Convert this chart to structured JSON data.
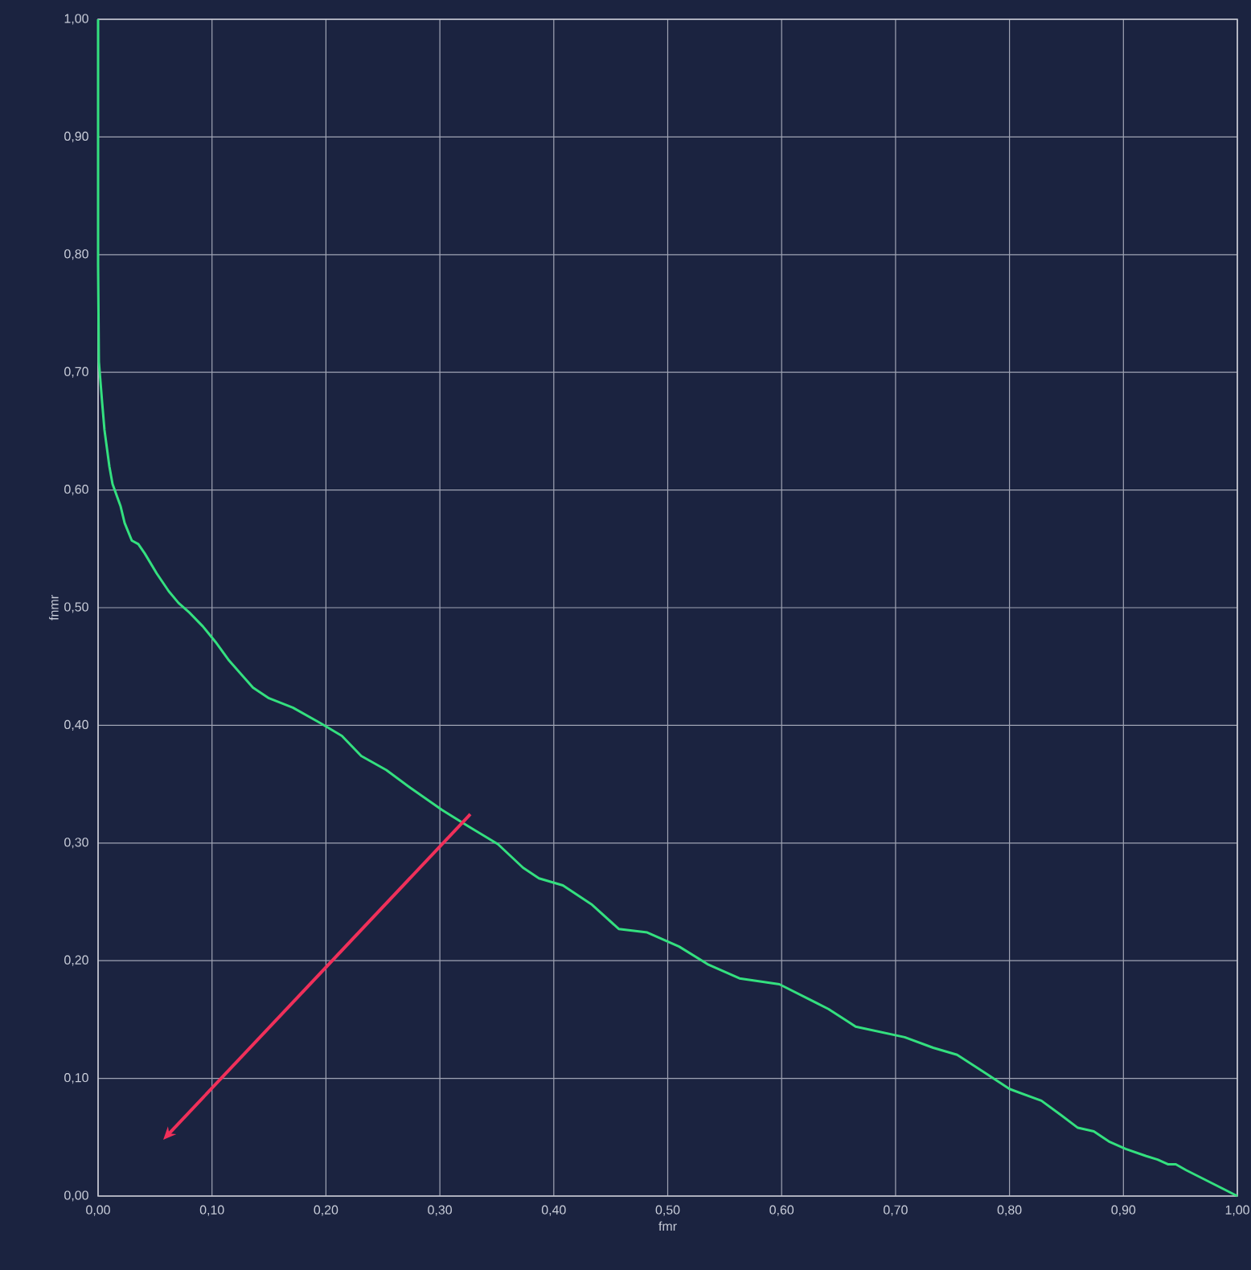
{
  "chart_data": {
    "type": "line",
    "xlabel": "fmr",
    "ylabel": "fnmr",
    "x": [
      0,
      0,
      0.0007,
      0.0035,
      0.0056,
      0.0099,
      0.0127,
      0.0198,
      0.0233,
      0.0296,
      0.0353,
      0.041,
      0.0515,
      0.062,
      0.0706,
      0.08,
      0.092,
      0.103,
      0.115,
      0.126,
      0.136,
      0.15,
      0.171,
      0.195,
      0.214,
      0.231,
      0.253,
      0.274,
      0.302,
      0.327,
      0.351,
      0.373,
      0.387,
      0.408,
      0.433,
      0.457,
      0.482,
      0.51,
      0.535,
      0.563,
      0.598,
      0.641,
      0.665,
      0.708,
      0.733,
      0.754,
      0.778,
      0.8,
      0.828,
      0.845,
      0.86,
      0.874,
      0.888,
      0.902,
      0.92,
      0.93,
      0.939,
      0.946,
      0.955,
      1
    ],
    "values": [
      1.0,
      0.791,
      0.709,
      0.675,
      0.651,
      0.62,
      0.605,
      0.586,
      0.572,
      0.557,
      0.554,
      0.546,
      0.529,
      0.514,
      0.504,
      0.496,
      0.484,
      0.471,
      0.455,
      0.443,
      0.432,
      0.423,
      0.415,
      0.402,
      0.391,
      0.374,
      0.362,
      0.347,
      0.328,
      0.313,
      0.299,
      0.279,
      0.27,
      0.264,
      0.248,
      0.227,
      0.224,
      0.212,
      0.197,
      0.185,
      0.18,
      0.159,
      0.144,
      0.135,
      0.126,
      0.12,
      0.105,
      0.091,
      0.081,
      0.069,
      0.058,
      0.055,
      0.046,
      0.04,
      0.034,
      0.031,
      0.027,
      0.027,
      0.022,
      0
    ],
    "color": "#34e07f",
    "marker": "none",
    "line_style": "solid",
    "grid": true,
    "xlim": [
      0,
      1
    ],
    "ylim": [
      0,
      1
    ],
    "xticks": [
      {
        "value": 0,
        "label": "0,00"
      },
      {
        "value": 0.1,
        "label": "0,10"
      },
      {
        "value": 0.2,
        "label": "0,20"
      },
      {
        "value": 0.3,
        "label": "0,30"
      },
      {
        "value": 0.4,
        "label": "0,40"
      },
      {
        "value": 0.5,
        "label": "0,50"
      },
      {
        "value": 0.6,
        "label": "0,60"
      },
      {
        "value": 0.7,
        "label": "0,70"
      },
      {
        "value": 0.8,
        "label": "0,80"
      },
      {
        "value": 0.9,
        "label": "0,90"
      },
      {
        "value": 1,
        "label": "1,00"
      }
    ],
    "yticks": [
      {
        "value": 0,
        "label": "0,00"
      },
      {
        "value": 0.1,
        "label": "0,10"
      },
      {
        "value": 0.2,
        "label": "0,20"
      },
      {
        "value": 0.3,
        "label": "0,30"
      },
      {
        "value": 0.4,
        "label": "0,40"
      },
      {
        "value": 0.5,
        "label": "0,50"
      },
      {
        "value": 0.6,
        "label": "0,60"
      },
      {
        "value": 0.7,
        "label": "0,70"
      },
      {
        "value": 0.8,
        "label": "0,80"
      },
      {
        "value": 0.9,
        "label": "0,90"
      },
      {
        "value": 1,
        "label": "1,00"
      }
    ]
  }
}
